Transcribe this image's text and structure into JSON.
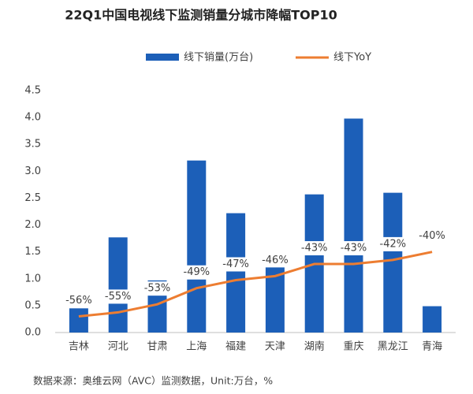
{
  "chart_data": {
    "type": "bar-line",
    "title": "22Q1中国电视线下监测销量分城市降幅TOP10",
    "source": "数据来源：奥维云网（AVC）监测数据，Unit:万台，%",
    "categories": [
      "吉林",
      "河北",
      "甘肃",
      "上海",
      "福建",
      "天津",
      "湖南",
      "重庆",
      "黑龙江",
      "青海"
    ],
    "series": [
      {
        "name": "线下销量(万台)",
        "type": "bar",
        "color": "#1c5fb8",
        "values": [
          0.45,
          1.77,
          0.97,
          3.2,
          2.22,
          1.24,
          2.57,
          3.98,
          2.6,
          0.49
        ]
      },
      {
        "name": "线下YoY",
        "type": "line",
        "axis": "y2",
        "color": "#ed7d31",
        "values": [
          -56,
          -55,
          -53,
          -49,
          -47,
          -46,
          -43,
          -43,
          -42,
          -40
        ],
        "value_labels": [
          "-56%",
          "-55%",
          "-53%",
          "-49%",
          "-47%",
          "-46%",
          "-43%",
          "-43%",
          "-42%",
          "-40%"
        ]
      }
    ],
    "ylim": [
      0,
      4.5
    ],
    "yticks": [
      {
        "value": 0,
        "label": "0.0"
      },
      0.5,
      {
        "value": 1,
        "label": "1.0"
      },
      1.5,
      {
        "value": 2,
        "label": "2.0"
      },
      2.5,
      {
        "value": 3,
        "label": "3.0"
      },
      3.5,
      {
        "value": 4,
        "label": "4.0"
      },
      4.5
    ],
    "y2lim": [
      -60,
      0
    ],
    "legend": "top",
    "grid": false
  }
}
